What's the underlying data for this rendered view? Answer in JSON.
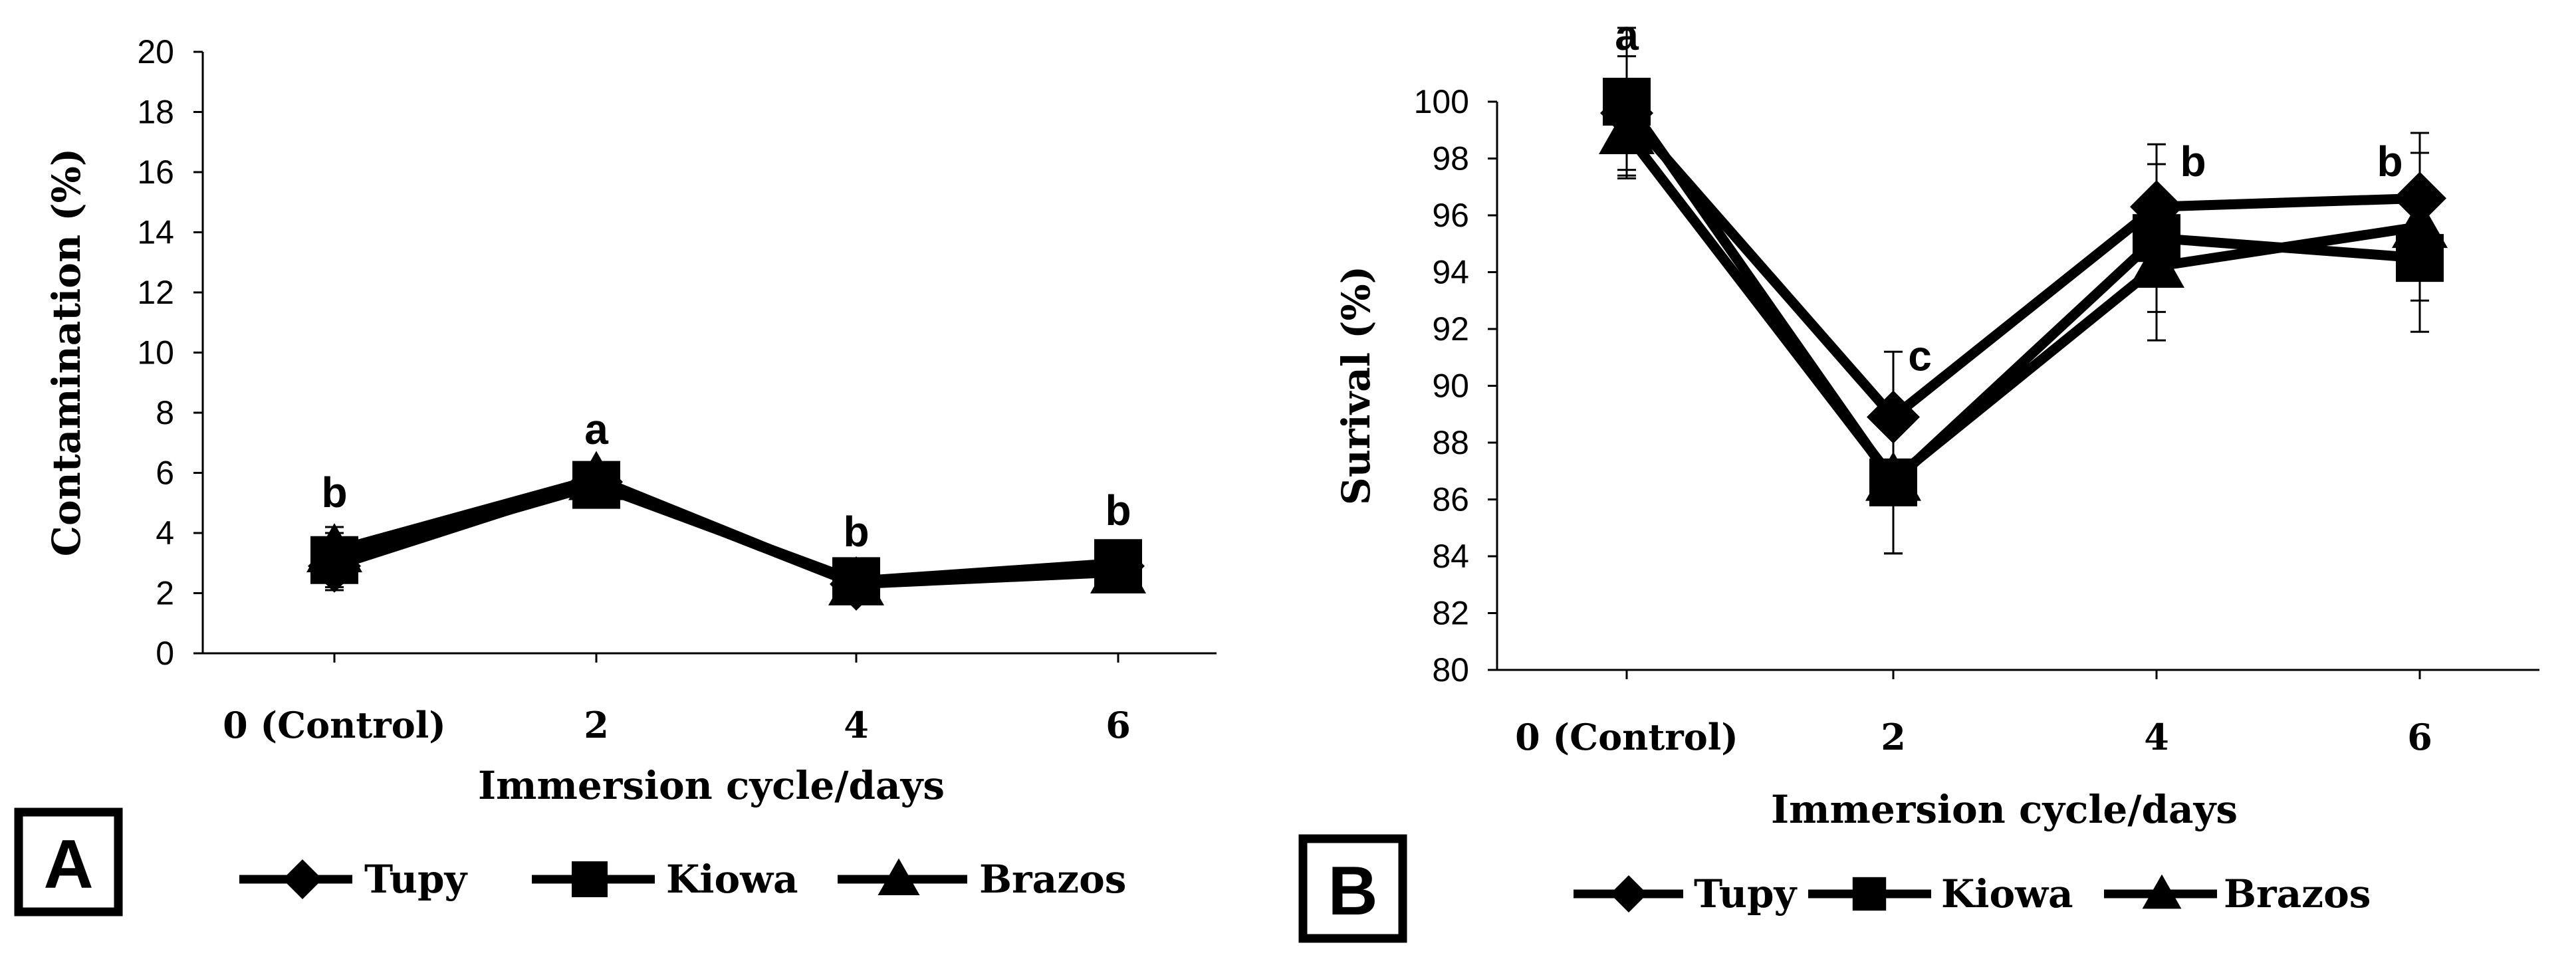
{
  "chart_data": [
    {
      "panel": "A",
      "type": "line",
      "title": "",
      "xlabel": "Immersion cycle/days",
      "ylabel": "Contamination (%)",
      "categories": [
        "0 (Control)",
        "2",
        "4",
        "6"
      ],
      "ylim": [
        0,
        20
      ],
      "yticks": [
        0,
        2,
        4,
        6,
        8,
        10,
        12,
        14,
        16,
        18,
        20
      ],
      "series": [
        {
          "name": "Tupy",
          "marker": "diamond",
          "values": [
            2.9,
            5.7,
            2.3,
            2.9
          ],
          "errors": [
            0.8,
            0.6,
            0.5,
            0.6
          ]
        },
        {
          "name": "Kiowa",
          "marker": "square",
          "values": [
            3.1,
            5.6,
            2.4,
            3.0
          ],
          "errors": [
            0.9,
            0.6,
            0.5,
            0.6
          ]
        },
        {
          "name": "Brazos",
          "marker": "triangle",
          "values": [
            3.4,
            5.8,
            2.3,
            2.7
          ],
          "errors": [
            0.8,
            0.5,
            0.5,
            0.5
          ]
        }
      ],
      "significance": [
        "b",
        "a",
        "b",
        "b"
      ],
      "legend": "bottom"
    },
    {
      "panel": "B",
      "type": "line",
      "title": "",
      "xlabel": "Immersion cycle/days",
      "ylabel": "Surival (%)",
      "categories": [
        "0 (Control)",
        "2",
        "4",
        "6"
      ],
      "ylim": [
        80,
        100
      ],
      "yticks": [
        80,
        82,
        84,
        86,
        88,
        90,
        92,
        94,
        96,
        98,
        100
      ],
      "series": [
        {
          "name": "Tupy",
          "marker": "diamond",
          "values": [
            99.6,
            88.9,
            96.3,
            96.6
          ],
          "errors": [
            2.0,
            2.3,
            2.2,
            2.3
          ]
        },
        {
          "name": "Kiowa",
          "marker": "square",
          "values": [
            100,
            86.6,
            95.2,
            94.5
          ],
          "errors": [
            2.6,
            2.5,
            2.6,
            2.6
          ]
        },
        {
          "name": "Brazos",
          "marker": "triangle",
          "values": [
            98.9,
            86.7,
            94.2,
            95.6
          ],
          "errors": [
            1.6,
            2.6,
            2.6,
            2.6
          ]
        }
      ],
      "significance": [
        "a",
        "c",
        "b",
        "b"
      ],
      "legend": "bottom"
    }
  ]
}
